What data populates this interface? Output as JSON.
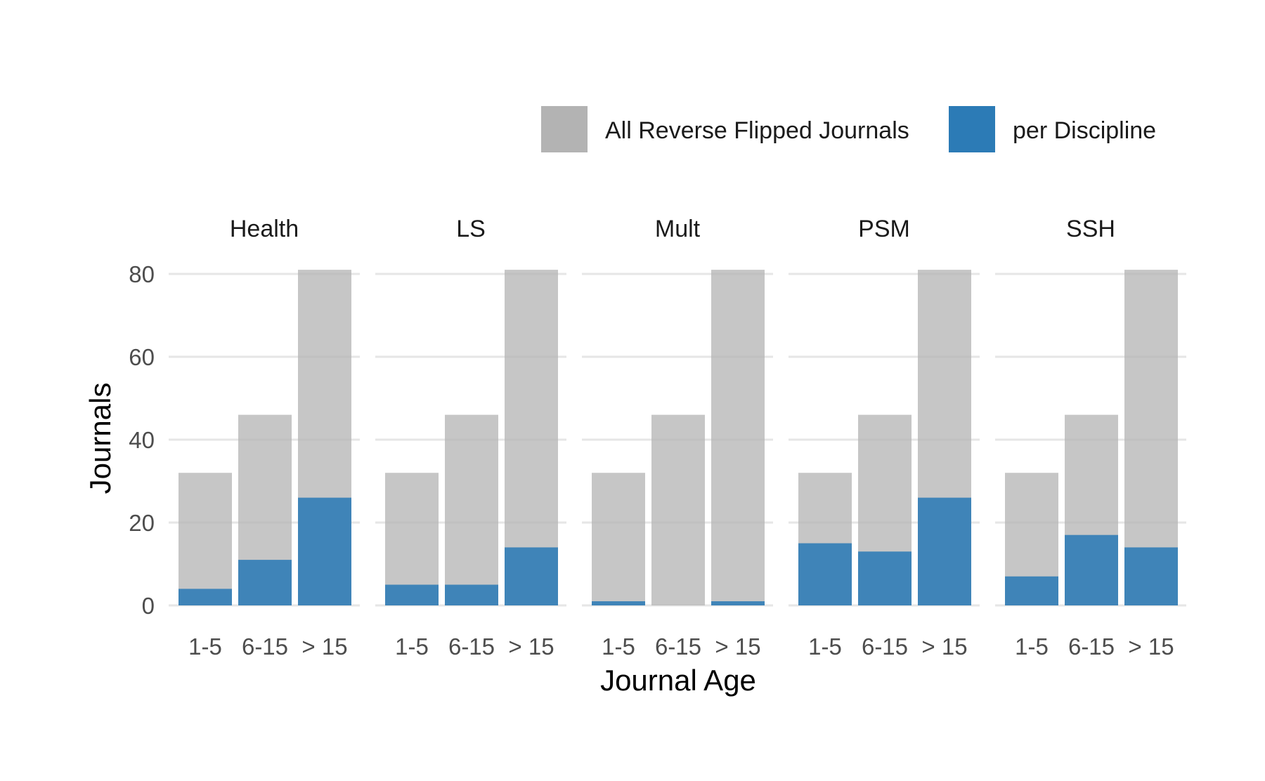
{
  "chart_data": {
    "type": "bar",
    "facets": [
      "Health",
      "LS",
      "Mult",
      "PSM",
      "SSH"
    ],
    "categories": [
      "1-5",
      "6-15",
      "> 15"
    ],
    "xlabel": "Journal Age",
    "ylabel": "Journals",
    "ylim": [
      0,
      81
    ],
    "yticks": [
      0,
      20,
      40,
      60,
      80
    ],
    "grid": true,
    "legend_position": "top-right",
    "series": [
      {
        "name": "All Reverse Flipped Journals",
        "color": "#b3b3b3",
        "values": {
          "Health": [
            32,
            46,
            81
          ],
          "LS": [
            32,
            46,
            81
          ],
          "Mult": [
            32,
            46,
            81
          ],
          "PSM": [
            32,
            46,
            81
          ],
          "SSH": [
            32,
            46,
            81
          ]
        }
      },
      {
        "name": "per Discipline",
        "color": "#2c7bb6",
        "values": {
          "Health": [
            4,
            11,
            26
          ],
          "LS": [
            5,
            5,
            14
          ],
          "Mult": [
            1,
            0,
            1
          ],
          "PSM": [
            15,
            13,
            26
          ],
          "SSH": [
            7,
            17,
            14
          ]
        }
      }
    ]
  }
}
